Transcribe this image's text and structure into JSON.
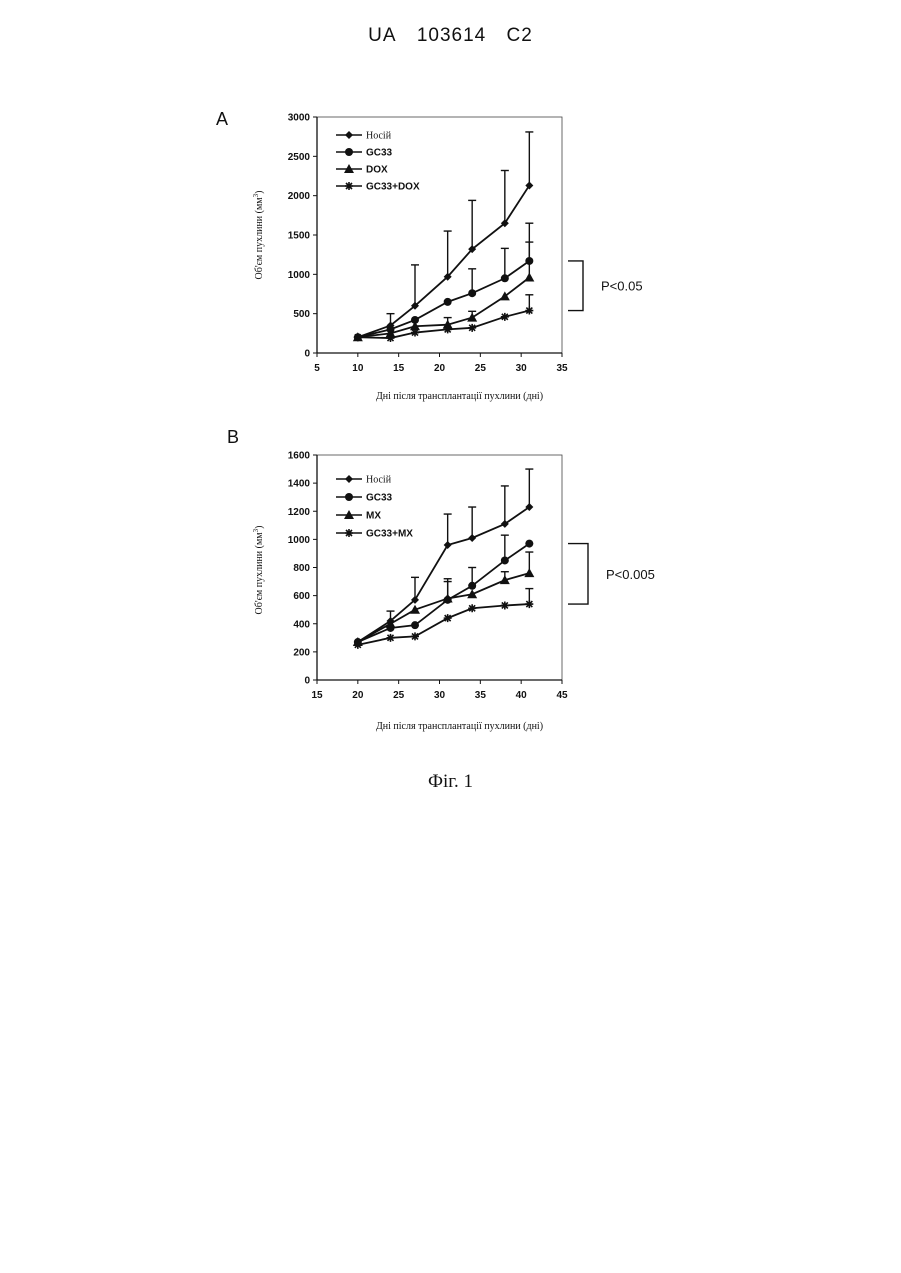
{
  "header": {
    "country": "UA",
    "number": "103614",
    "kind": "C2"
  },
  "caption": "Фіг. 1",
  "chart_data": [
    {
      "type": "line",
      "panel_label": "A",
      "xlabel": "Дні після трансплантації пухлини (дні)",
      "ylabel": "Об'єм пухлини",
      "ylabel_unit": "(мм",
      "ylabel_unit_sup": "3",
      "ylabel_unit_end": ")",
      "xlim": [
        5,
        35
      ],
      "ylim": [
        0,
        3000
      ],
      "xticks": [
        5,
        10,
        15,
        20,
        25,
        30,
        35
      ],
      "yticks": [
        0,
        500,
        1000,
        1500,
        2000,
        2500,
        3000
      ],
      "grid": false,
      "legend_position": "top-left",
      "significance": {
        "label": "P<0.05",
        "from_series": 1,
        "to_series": 3
      },
      "series": [
        {
          "name": "Носій",
          "marker": "diamond",
          "x": [
            10,
            14,
            17,
            21,
            24,
            28,
            31
          ],
          "y": [
            200,
            350,
            600,
            970,
            1320,
            1650,
            2130
          ],
          "err": [
            0,
            150,
            520,
            580,
            620,
            670,
            680
          ]
        },
        {
          "name": "GC33",
          "marker": "circle",
          "x": [
            10,
            14,
            17,
            21,
            24,
            28,
            31
          ],
          "y": [
            200,
            300,
            420,
            650,
            760,
            950,
            1170
          ],
          "err": [
            0,
            0,
            0,
            0,
            310,
            380,
            480
          ]
        },
        {
          "name": "DOX",
          "marker": "triangle",
          "x": [
            10,
            14,
            17,
            21,
            24,
            28,
            31
          ],
          "y": [
            200,
            250,
            340,
            360,
            450,
            720,
            960
          ],
          "err": [
            0,
            0,
            0,
            90,
            80,
            0,
            450
          ]
        },
        {
          "name": "GC33+DOX",
          "marker": "star",
          "x": [
            10,
            14,
            17,
            21,
            24,
            28,
            31
          ],
          "y": [
            200,
            190,
            260,
            300,
            320,
            460,
            540
          ],
          "err": [
            0,
            0,
            0,
            0,
            0,
            0,
            200
          ]
        }
      ]
    },
    {
      "type": "line",
      "panel_label": "B",
      "xlabel": "Дні після трансплантації пухлини (дні)",
      "ylabel": "Об'єм пухлини",
      "ylabel_unit": "(мм",
      "ylabel_unit_sup": "3",
      "ylabel_unit_end": ")",
      "xlim": [
        15,
        45
      ],
      "ylim": [
        0,
        1600
      ],
      "xticks": [
        15,
        20,
        25,
        30,
        35,
        40,
        45
      ],
      "yticks": [
        0,
        200,
        400,
        600,
        800,
        1000,
        1200,
        1400,
        1600
      ],
      "grid": false,
      "legend_position": "top-left",
      "significance": {
        "label": "P<0.005",
        "from_series": 1,
        "to_series": 3
      },
      "series": [
        {
          "name": "Носій",
          "marker": "diamond",
          "x": [
            20,
            24,
            27,
            31,
            34,
            38,
            41
          ],
          "y": [
            270,
            420,
            570,
            960,
            1010,
            1110,
            1230
          ],
          "err": [
            0,
            70,
            160,
            220,
            220,
            270,
            270
          ]
        },
        {
          "name": "GC33",
          "marker": "circle",
          "x": [
            20,
            24,
            27,
            31,
            34,
            38,
            41
          ],
          "y": [
            270,
            370,
            390,
            570,
            670,
            850,
            970
          ],
          "err": [
            0,
            0,
            0,
            130,
            130,
            180,
            0
          ]
        },
        {
          "name": "MX",
          "marker": "triangle",
          "x": [
            20,
            24,
            27,
            31,
            34,
            38,
            41
          ],
          "y": [
            270,
            400,
            500,
            580,
            610,
            710,
            760
          ],
          "err": [
            0,
            0,
            0,
            140,
            0,
            60,
            150
          ]
        },
        {
          "name": "GC33+MX",
          "marker": "star",
          "x": [
            20,
            24,
            27,
            31,
            34,
            38,
            41
          ],
          "y": [
            250,
            300,
            310,
            440,
            510,
            530,
            540
          ],
          "err": [
            0,
            0,
            0,
            0,
            0,
            0,
            110
          ]
        }
      ]
    }
  ]
}
